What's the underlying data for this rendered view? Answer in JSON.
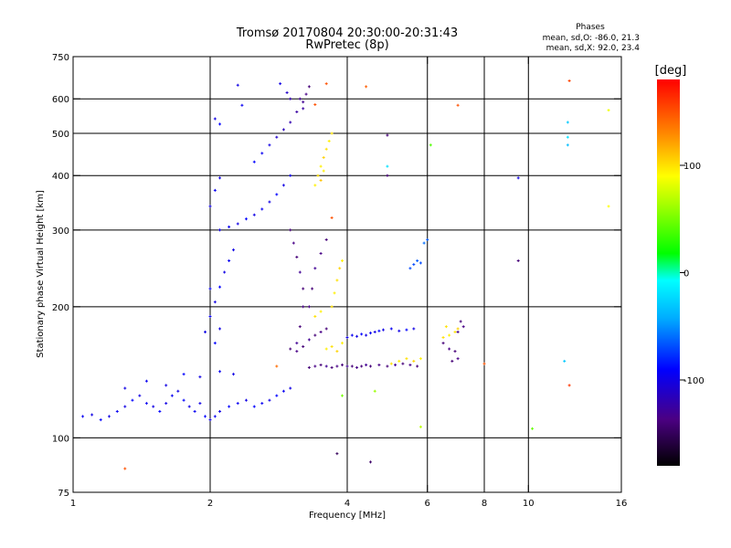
{
  "chart_data": {
    "type": "scatter",
    "title": "Tromsø 20170804 20:30:00-20:31:43",
    "subtitle": "RwPretec (8p)",
    "xlabel": "Frequency [MHz]",
    "ylabel": "Stationary phase Virtual Height [km]",
    "x_scale": "log",
    "y_scale": "log",
    "xlim": [
      1,
      16
    ],
    "ylim": [
      75,
      750
    ],
    "x_ticks": [
      1,
      2,
      4,
      6,
      8,
      10,
      16
    ],
    "y_ticks": [
      75,
      100,
      200,
      300,
      400,
      500,
      600,
      750
    ],
    "grid": true,
    "phase_info": {
      "title": "Phases",
      "line1": "mean, sd,O: -86.0, 21.3",
      "line2": "mean, sd,X: 92.0, 23.4"
    },
    "colorbar": {
      "label": "[deg]",
      "range": [
        -180,
        180
      ],
      "ticks": [
        100,
        0,
        -100
      ]
    },
    "series": [
      {
        "points": [
          [
            1.05,
            112,
            -95
          ],
          [
            1.1,
            113,
            -100
          ],
          [
            1.15,
            110,
            -90
          ],
          [
            1.2,
            112,
            -100
          ],
          [
            1.25,
            115,
            -95
          ],
          [
            1.3,
            118,
            -100
          ],
          [
            1.35,
            122,
            -90
          ],
          [
            1.4,
            125,
            -100
          ],
          [
            1.45,
            120,
            -95
          ],
          [
            1.5,
            118,
            -100
          ],
          [
            1.55,
            115,
            -90
          ],
          [
            1.6,
            120,
            -100
          ],
          [
            1.65,
            125,
            -95
          ],
          [
            1.7,
            128,
            -100
          ],
          [
            1.75,
            122,
            -90
          ],
          [
            1.8,
            118,
            -100
          ],
          [
            1.85,
            115,
            -95
          ],
          [
            1.9,
            120,
            -100
          ],
          [
            1.95,
            112,
            -90
          ],
          [
            2.0,
            110,
            -100
          ],
          [
            2.05,
            112,
            -95
          ],
          [
            2.1,
            115,
            -100
          ],
          [
            2.2,
            118,
            -90
          ],
          [
            2.3,
            120,
            -95
          ],
          [
            2.4,
            122,
            -100
          ],
          [
            2.5,
            118,
            -90
          ],
          [
            2.6,
            120,
            -95
          ],
          [
            2.7,
            122,
            -100
          ],
          [
            2.8,
            125,
            -90
          ],
          [
            2.9,
            128,
            -95
          ],
          [
            3.0,
            130,
            -100
          ],
          [
            1.3,
            130,
            -100
          ],
          [
            1.45,
            135,
            -95
          ],
          [
            1.6,
            132,
            -100
          ],
          [
            1.75,
            140,
            -90
          ],
          [
            1.9,
            138,
            -100
          ],
          [
            2.1,
            142,
            -95
          ],
          [
            2.25,
            140,
            -100
          ]
        ]
      },
      {
        "points": [
          [
            1.95,
            175,
            -100
          ],
          [
            2.0,
            190,
            -95
          ],
          [
            2.05,
            205,
            -100
          ],
          [
            2.1,
            222,
            -90
          ],
          [
            2.15,
            240,
            -100
          ],
          [
            2.2,
            255,
            -95
          ],
          [
            2.25,
            270,
            -100
          ],
          [
            2.05,
            165,
            -90
          ],
          [
            2.1,
            178,
            -100
          ],
          [
            2.0,
            220,
            -95
          ],
          [
            2.1,
            300,
            -100
          ],
          [
            2.2,
            305,
            -95
          ],
          [
            2.3,
            310,
            -100
          ],
          [
            2.4,
            318,
            -90
          ],
          [
            2.5,
            325,
            -100
          ],
          [
            2.6,
            335,
            -95
          ],
          [
            2.7,
            348,
            -100
          ],
          [
            2.8,
            362,
            -90
          ],
          [
            2.9,
            380,
            -100
          ],
          [
            3.0,
            400,
            -95
          ],
          [
            2.0,
            340,
            -100
          ],
          [
            2.05,
            370,
            -95
          ],
          [
            2.1,
            395,
            -100
          ]
        ]
      },
      {
        "points": [
          [
            2.5,
            430,
            -90
          ],
          [
            2.6,
            450,
            -95
          ],
          [
            2.7,
            470,
            -100
          ],
          [
            2.8,
            490,
            -110
          ],
          [
            2.9,
            510,
            -115
          ],
          [
            3.0,
            530,
            -120
          ],
          [
            3.1,
            560,
            -125
          ],
          [
            3.2,
            590,
            -130
          ],
          [
            3.25,
            615,
            -135
          ],
          [
            3.3,
            640,
            -140
          ],
          [
            3.15,
            600,
            -130
          ],
          [
            3.2,
            570,
            -125
          ],
          [
            2.85,
            650,
            -100
          ],
          [
            2.95,
            620,
            -110
          ],
          [
            3.0,
            600,
            -120
          ],
          [
            2.3,
            645,
            -100
          ],
          [
            2.35,
            580,
            -95
          ],
          [
            2.05,
            540,
            -100
          ],
          [
            2.1,
            525,
            -90
          ]
        ]
      },
      {
        "points": [
          [
            3.0,
            300,
            -140
          ],
          [
            3.05,
            280,
            -135
          ],
          [
            3.1,
            260,
            -140
          ],
          [
            3.15,
            240,
            -130
          ],
          [
            3.2,
            220,
            -140
          ],
          [
            3.2,
            200,
            -135
          ],
          [
            3.15,
            180,
            -140
          ],
          [
            3.1,
            165,
            -130
          ],
          [
            3.0,
            160,
            -140
          ],
          [
            3.1,
            158,
            -135
          ],
          [
            3.2,
            162,
            -140
          ],
          [
            3.3,
            168,
            -130
          ],
          [
            3.4,
            172,
            -140
          ],
          [
            3.5,
            175,
            -135
          ],
          [
            3.6,
            178,
            -140
          ],
          [
            3.3,
            200,
            -135
          ],
          [
            3.35,
            220,
            -140
          ],
          [
            3.4,
            245,
            -130
          ],
          [
            3.5,
            265,
            -135
          ],
          [
            3.6,
            285,
            -140
          ]
        ]
      },
      {
        "points": [
          [
            3.3,
            145,
            -140
          ],
          [
            3.4,
            146,
            -135
          ],
          [
            3.5,
            147,
            -140
          ],
          [
            3.6,
            146,
            -130
          ],
          [
            3.7,
            145,
            -140
          ],
          [
            3.8,
            146,
            -135
          ],
          [
            3.9,
            147,
            -140
          ],
          [
            4.0,
            146,
            -130
          ],
          [
            4.1,
            146,
            -140
          ],
          [
            4.2,
            145,
            -135
          ],
          [
            4.3,
            146,
            -140
          ],
          [
            4.4,
            147,
            -130
          ],
          [
            4.5,
            146,
            -140
          ],
          [
            4.7,
            147,
            -135
          ],
          [
            4.9,
            146,
            -140
          ],
          [
            5.1,
            147,
            -130
          ],
          [
            5.3,
            148,
            -140
          ],
          [
            5.5,
            147,
            -135
          ],
          [
            5.7,
            146,
            -140
          ]
        ]
      },
      {
        "points": [
          [
            4.0,
            170,
            -100
          ],
          [
            4.1,
            172,
            -95
          ],
          [
            4.2,
            171,
            -100
          ],
          [
            4.3,
            173,
            -90
          ],
          [
            4.4,
            172,
            -100
          ],
          [
            4.5,
            174,
            -95
          ],
          [
            4.6,
            175,
            -100
          ],
          [
            4.7,
            176,
            -90
          ],
          [
            4.8,
            177,
            -100
          ],
          [
            5.0,
            178,
            -95
          ],
          [
            5.2,
            176,
            -100
          ],
          [
            5.4,
            177,
            -90
          ],
          [
            5.6,
            178,
            -100
          ]
        ]
      },
      {
        "points": [
          [
            3.4,
            380,
            95
          ],
          [
            3.45,
            400,
            100
          ],
          [
            3.5,
            420,
            95
          ],
          [
            3.55,
            440,
            105
          ],
          [
            3.6,
            460,
            100
          ],
          [
            3.65,
            480,
            95
          ],
          [
            3.7,
            500,
            100
          ],
          [
            3.5,
            390,
            110
          ],
          [
            3.55,
            410,
            95
          ]
        ]
      },
      {
        "points": [
          [
            3.6,
            160,
            95
          ],
          [
            3.7,
            162,
            100
          ],
          [
            3.8,
            158,
            105
          ],
          [
            3.9,
            165,
            95
          ],
          [
            3.7,
            200,
            100
          ],
          [
            3.75,
            215,
            95
          ],
          [
            3.8,
            230,
            100
          ],
          [
            3.85,
            245,
            105
          ],
          [
            3.9,
            255,
            95
          ],
          [
            3.4,
            190,
            100
          ],
          [
            3.5,
            195,
            95
          ]
        ]
      },
      {
        "points": [
          [
            5.0,
            148,
            100
          ],
          [
            5.2,
            150,
            95
          ],
          [
            5.4,
            152,
            100
          ],
          [
            5.6,
            150,
            105
          ],
          [
            5.8,
            152,
            95
          ],
          [
            6.5,
            170,
            100
          ],
          [
            6.7,
            172,
            95
          ],
          [
            6.9,
            175,
            100
          ],
          [
            7.0,
            178,
            105
          ],
          [
            6.6,
            180,
            100
          ]
        ]
      },
      {
        "points": [
          [
            6.5,
            165,
            -140
          ],
          [
            6.7,
            160,
            -135
          ],
          [
            6.9,
            158,
            -140
          ],
          [
            7.0,
            175,
            -130
          ],
          [
            7.1,
            185,
            -140
          ],
          [
            7.2,
            180,
            -135
          ],
          [
            6.8,
            150,
            -140
          ],
          [
            7.0,
            152,
            -135
          ]
        ]
      },
      {
        "points": [
          [
            5.6,
            250,
            -70
          ],
          [
            5.7,
            255,
            -65
          ],
          [
            5.8,
            252,
            -70
          ],
          [
            5.9,
            280,
            -60
          ],
          [
            6.0,
            285,
            -65
          ],
          [
            5.5,
            245,
            -70
          ]
        ]
      },
      {
        "points": [
          [
            1.3,
            85,
            150
          ],
          [
            7.0,
            580,
            150
          ],
          [
            12.3,
            660,
            155
          ],
          [
            12.3,
            132,
            160
          ],
          [
            3.6,
            650,
            150
          ],
          [
            8.0,
            148,
            150
          ],
          [
            4.4,
            640,
            145
          ],
          [
            3.4,
            582,
            150
          ],
          [
            2.8,
            146,
            140
          ],
          [
            3.7,
            320,
            150
          ]
        ]
      },
      {
        "points": [
          [
            12.2,
            530,
            -30
          ],
          [
            12.2,
            490,
            -20
          ],
          [
            12.2,
            470,
            -35
          ],
          [
            4.9,
            420,
            -20
          ],
          [
            12.0,
            150,
            -30
          ]
        ]
      },
      {
        "points": [
          [
            6.1,
            470,
            40
          ],
          [
            10.2,
            105,
            45
          ],
          [
            3.9,
            125,
            50
          ],
          [
            4.6,
            128,
            60
          ],
          [
            5.8,
            106,
            70
          ],
          [
            15.0,
            340,
            90
          ],
          [
            15.0,
            565,
            85
          ]
        ]
      },
      {
        "points": [
          [
            9.5,
            255,
            -140
          ],
          [
            9.5,
            395,
            -100
          ],
          [
            4.9,
            495,
            -140
          ],
          [
            4.9,
            400,
            -140
          ],
          [
            3.8,
            92,
            -150
          ],
          [
            4.5,
            88,
            -145
          ]
        ]
      }
    ]
  }
}
